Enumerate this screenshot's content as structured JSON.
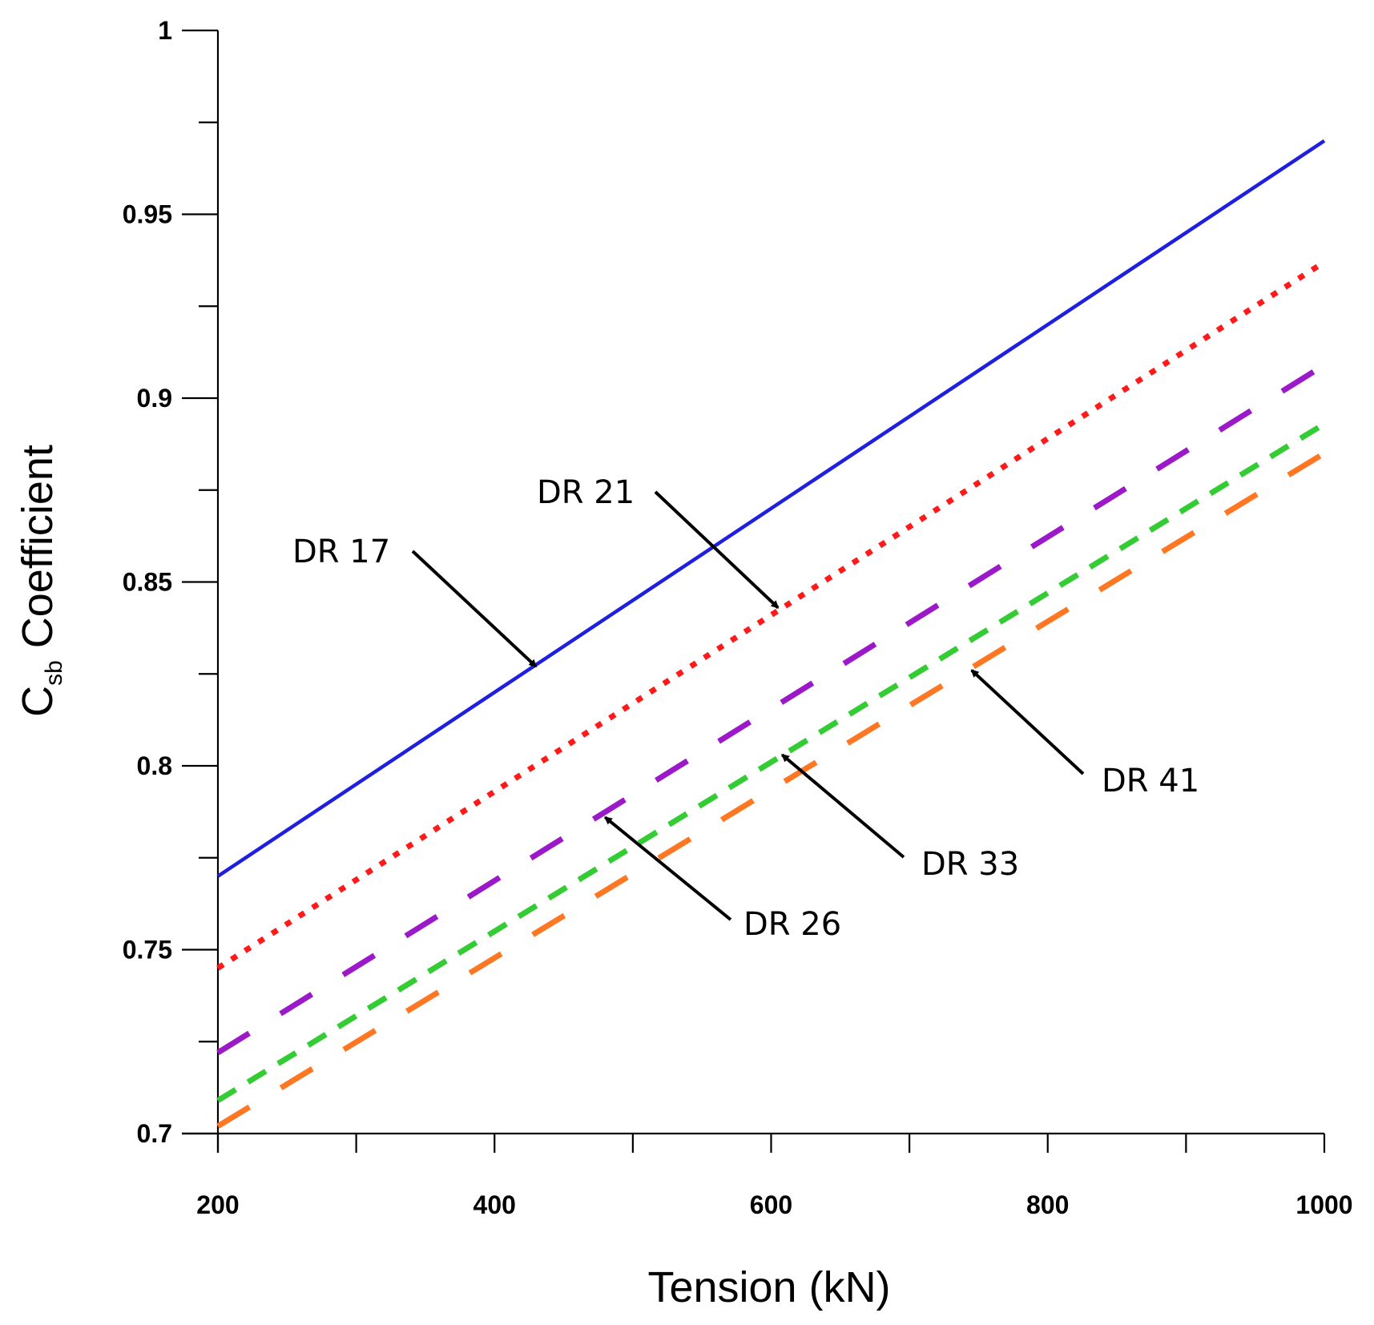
{
  "chart_data": {
    "type": "line",
    "title": "",
    "xlabel": "Tension (kN)",
    "ylabel_main": "C",
    "ylabel_sub": "sb",
    "ylabel_rest": " Coefficient",
    "xlim": [
      200,
      1000
    ],
    "ylim": [
      0.7,
      1.0
    ],
    "x_ticks": [
      200,
      400,
      600,
      800,
      1000
    ],
    "x_minor_ticks": [
      300,
      500,
      700,
      900
    ],
    "x_tick_labels": [
      "200",
      "400",
      "600",
      "800",
      "1000"
    ],
    "y_ticks": [
      0.7,
      0.75,
      0.8,
      0.85,
      0.9,
      0.95,
      1.0
    ],
    "y_minor_ticks": [
      0.725,
      0.775,
      0.825,
      0.875,
      0.925,
      0.975
    ],
    "y_tick_labels": [
      "0.7",
      "0.75",
      "0.8",
      "0.85",
      "0.9",
      "0.95",
      "1"
    ],
    "grid": false,
    "series": [
      {
        "name": "DR 17",
        "x": [
          200,
          1000
        ],
        "values": [
          0.77,
          0.97
        ],
        "color": "#1f1fe0",
        "style": "solid"
      },
      {
        "name": "DR 21",
        "x": [
          200,
          1000
        ],
        "values": [
          0.745,
          0.937
        ],
        "color": "#ff1a1a",
        "style": "dotted"
      },
      {
        "name": "DR 26",
        "x": [
          200,
          1000
        ],
        "values": [
          0.722,
          0.909
        ],
        "color": "#9b19c8",
        "style": "longdash"
      },
      {
        "name": "DR 33",
        "x": [
          200,
          1000
        ],
        "values": [
          0.709,
          0.893
        ],
        "color": "#33cc33",
        "style": "dash"
      },
      {
        "name": "DR 41",
        "x": [
          200,
          1000
        ],
        "values": [
          0.702,
          0.885
        ],
        "color": "#ff7722",
        "style": "longdash"
      }
    ],
    "annotations": [
      {
        "text": "DR 17",
        "arrow_to": [
          430,
          0.827
        ]
      },
      {
        "text": "DR 21",
        "arrow_to": [
          605,
          0.843
        ]
      },
      {
        "text": "DR 26",
        "arrow_to": [
          480,
          0.786
        ]
      },
      {
        "text": "DR 33",
        "arrow_to": [
          608,
          0.803
        ]
      },
      {
        "text": "DR 41",
        "arrow_to": [
          745,
          0.826
        ]
      }
    ]
  }
}
